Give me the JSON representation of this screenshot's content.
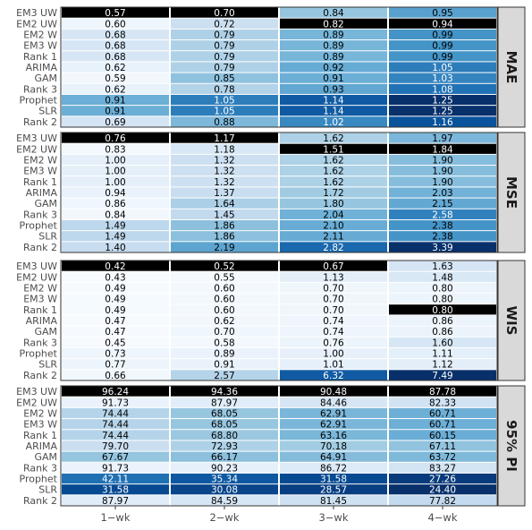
{
  "chart_data": {
    "type": "heatmap",
    "columns": [
      "1−wk",
      "2−wk",
      "3−wk",
      "4−wk"
    ],
    "rows": [
      "EM3 UW",
      "EM2 UW",
      "EM2 W",
      "EM3 W",
      "Rank 1",
      "ARIMA",
      "GAM",
      "Rank 3",
      "Prophet",
      "SLR",
      "Rank 2"
    ],
    "highlight_color": "#000000",
    "panels": [
      {
        "metric": "MAE",
        "values": [
          [
            "0.57",
            "0.70",
            "0.84",
            "0.95"
          ],
          [
            "0.60",
            "0.72",
            "0.82",
            "0.94"
          ],
          [
            "0.68",
            "0.79",
            "0.89",
            "0.99"
          ],
          [
            "0.68",
            "0.79",
            "0.89",
            "0.99"
          ],
          [
            "0.68",
            "0.79",
            "0.89",
            "0.99"
          ],
          [
            "0.62",
            "0.79",
            "0.92",
            "1.05"
          ],
          [
            "0.59",
            "0.85",
            "0.91",
            "1.03"
          ],
          [
            "0.62",
            "0.78",
            "0.93",
            "1.08"
          ],
          [
            "0.91",
            "1.05",
            "1.14",
            "1.25"
          ],
          [
            "0.91",
            "1.05",
            "1.14",
            "1.25"
          ],
          [
            "0.69",
            "0.88",
            "1.02",
            "1.16"
          ]
        ],
        "highlight": [
          [
            0,
            0
          ],
          [
            0,
            1
          ],
          [
            1,
            2
          ],
          [
            1,
            3
          ]
        ]
      },
      {
        "metric": "MSE",
        "values": [
          [
            "0.76",
            "1.17",
            "1.62",
            "1.97"
          ],
          [
            "0.83",
            "1.18",
            "1.51",
            "1.84"
          ],
          [
            "1.00",
            "1.32",
            "1.62",
            "1.90"
          ],
          [
            "1.00",
            "1.32",
            "1.62",
            "1.90"
          ],
          [
            "1.00",
            "1.32",
            "1.62",
            "1.90"
          ],
          [
            "0.94",
            "1.37",
            "1.72",
            "2.03"
          ],
          [
            "0.86",
            "1.64",
            "1.80",
            "2.15"
          ],
          [
            "0.84",
            "1.45",
            "2.04",
            "2.58"
          ],
          [
            "1.49",
            "1.86",
            "2.10",
            "2.38"
          ],
          [
            "1.49",
            "1.86",
            "2.11",
            "2.38"
          ],
          [
            "1.40",
            "2.19",
            "2.82",
            "3.39"
          ]
        ],
        "highlight": [
          [
            0,
            0
          ],
          [
            0,
            1
          ],
          [
            1,
            2
          ],
          [
            1,
            3
          ]
        ]
      },
      {
        "metric": "WIS",
        "values": [
          [
            "0.42",
            "0.52",
            "0.67",
            "1.63"
          ],
          [
            "0.43",
            "0.55",
            "1.13",
            "1.48"
          ],
          [
            "0.49",
            "0.60",
            "0.70",
            "0.80"
          ],
          [
            "0.49",
            "0.60",
            "0.70",
            "0.80"
          ],
          [
            "0.49",
            "0.60",
            "0.70",
            "0.80"
          ],
          [
            "0.47",
            "0.62",
            "0.74",
            "0.86"
          ],
          [
            "0.47",
            "0.70",
            "0.74",
            "0.86"
          ],
          [
            "0.45",
            "0.58",
            "0.76",
            "1.60"
          ],
          [
            "0.73",
            "0.89",
            "1.00",
            "1.11"
          ],
          [
            "0.77",
            "0.91",
            "1.01",
            "1.12"
          ],
          [
            "0.66",
            "2.57",
            "6.32",
            "7.49"
          ]
        ],
        "highlight": [
          [
            0,
            0
          ],
          [
            0,
            1
          ],
          [
            0,
            2
          ],
          [
            4,
            3
          ]
        ]
      },
      {
        "metric": "95% PI",
        "values": [
          [
            "96.24",
            "94.36",
            "90.48",
            "87.78"
          ],
          [
            "91.73",
            "87.97",
            "84.46",
            "82.33"
          ],
          [
            "74.44",
            "68.05",
            "62.91",
            "60.71"
          ],
          [
            "74.44",
            "68.05",
            "62.91",
            "60.71"
          ],
          [
            "74.44",
            "68.80",
            "63.16",
            "60.15"
          ],
          [
            "79.70",
            "72.93",
            "70.18",
            "67.11"
          ],
          [
            "67.67",
            "66.17",
            "64.91",
            "63.72"
          ],
          [
            "91.73",
            "90.23",
            "86.72",
            "83.27"
          ],
          [
            "42.11",
            "35.34",
            "31.58",
            "27.26"
          ],
          [
            "31.58",
            "30.08",
            "28.57",
            "24.40"
          ],
          [
            "87.97",
            "84.59",
            "81.45",
            "77.82"
          ]
        ],
        "highlight": [
          [
            0,
            0
          ],
          [
            0,
            1
          ],
          [
            0,
            2
          ],
          [
            0,
            3
          ]
        ],
        "reverse": true
      }
    ]
  }
}
